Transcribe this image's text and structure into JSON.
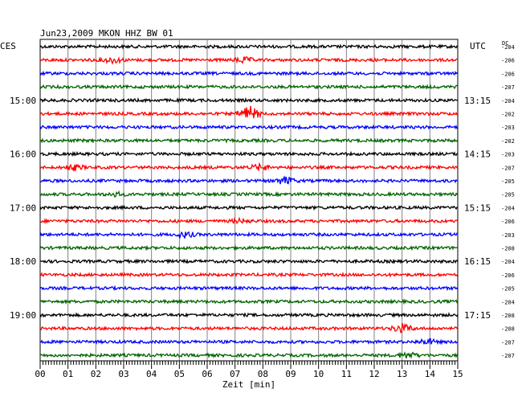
{
  "chart_data": {
    "type": "line",
    "header": "Jun23,2009   MKON HHZ BW 01",
    "left_zone": "CES",
    "right_zone": "UTC",
    "dc_label": "DC",
    "xlabel": "Zeit [min]",
    "x_ticks": [
      "00",
      "01",
      "02",
      "03",
      "04",
      "05",
      "06",
      "07",
      "08",
      "09",
      "10",
      "11",
      "12",
      "13",
      "14",
      "15"
    ],
    "xlim": [
      0,
      15
    ],
    "left_hour_labels": [
      {
        "row": 4,
        "text": "15:00"
      },
      {
        "row": 8,
        "text": "16:00"
      },
      {
        "row": 12,
        "text": "17:00"
      },
      {
        "row": 16,
        "text": "18:00"
      },
      {
        "row": 20,
        "text": "19:00"
      }
    ],
    "right_hour_labels": [
      {
        "row": 4,
        "text": "13:15"
      },
      {
        "row": 8,
        "text": "14:15"
      },
      {
        "row": 12,
        "text": "15:15"
      },
      {
        "row": 16,
        "text": "16:15"
      },
      {
        "row": 20,
        "text": "17:15"
      }
    ],
    "trace_colors": [
      "#000000",
      "#ff0000",
      "#0000ff",
      "#006400"
    ],
    "dc_offsets": [
      "-204",
      "-206",
      "-206",
      "-207",
      "-204",
      "-202",
      "-203",
      "-202",
      "-203",
      "-207",
      "-205",
      "-205",
      "-204",
      "-206",
      "-203",
      "-208",
      "-204",
      "-206",
      "-205",
      "-204",
      "-208",
      "-208",
      "-207",
      "-207"
    ],
    "events": [
      {
        "row": 1,
        "minute": 2.6,
        "amp": 3
      },
      {
        "row": 1,
        "minute": 7.3,
        "amp": 3
      },
      {
        "row": 5,
        "minute": 7.5,
        "amp": 9
      },
      {
        "row": 9,
        "minute": 1.2,
        "amp": 3
      },
      {
        "row": 9,
        "minute": 7.9,
        "amp": 3
      },
      {
        "row": 10,
        "minute": 8.8,
        "amp": 4
      },
      {
        "row": 11,
        "minute": 2.7,
        "amp": 2
      },
      {
        "row": 13,
        "minute": 7.2,
        "amp": 2
      },
      {
        "row": 14,
        "minute": 5.2,
        "amp": 3
      },
      {
        "row": 21,
        "minute": 13.0,
        "amp": 5
      },
      {
        "row": 22,
        "minute": 13.9,
        "amp": 3
      },
      {
        "row": 23,
        "minute": 13.2,
        "amp": 3
      }
    ],
    "grid": true
  }
}
